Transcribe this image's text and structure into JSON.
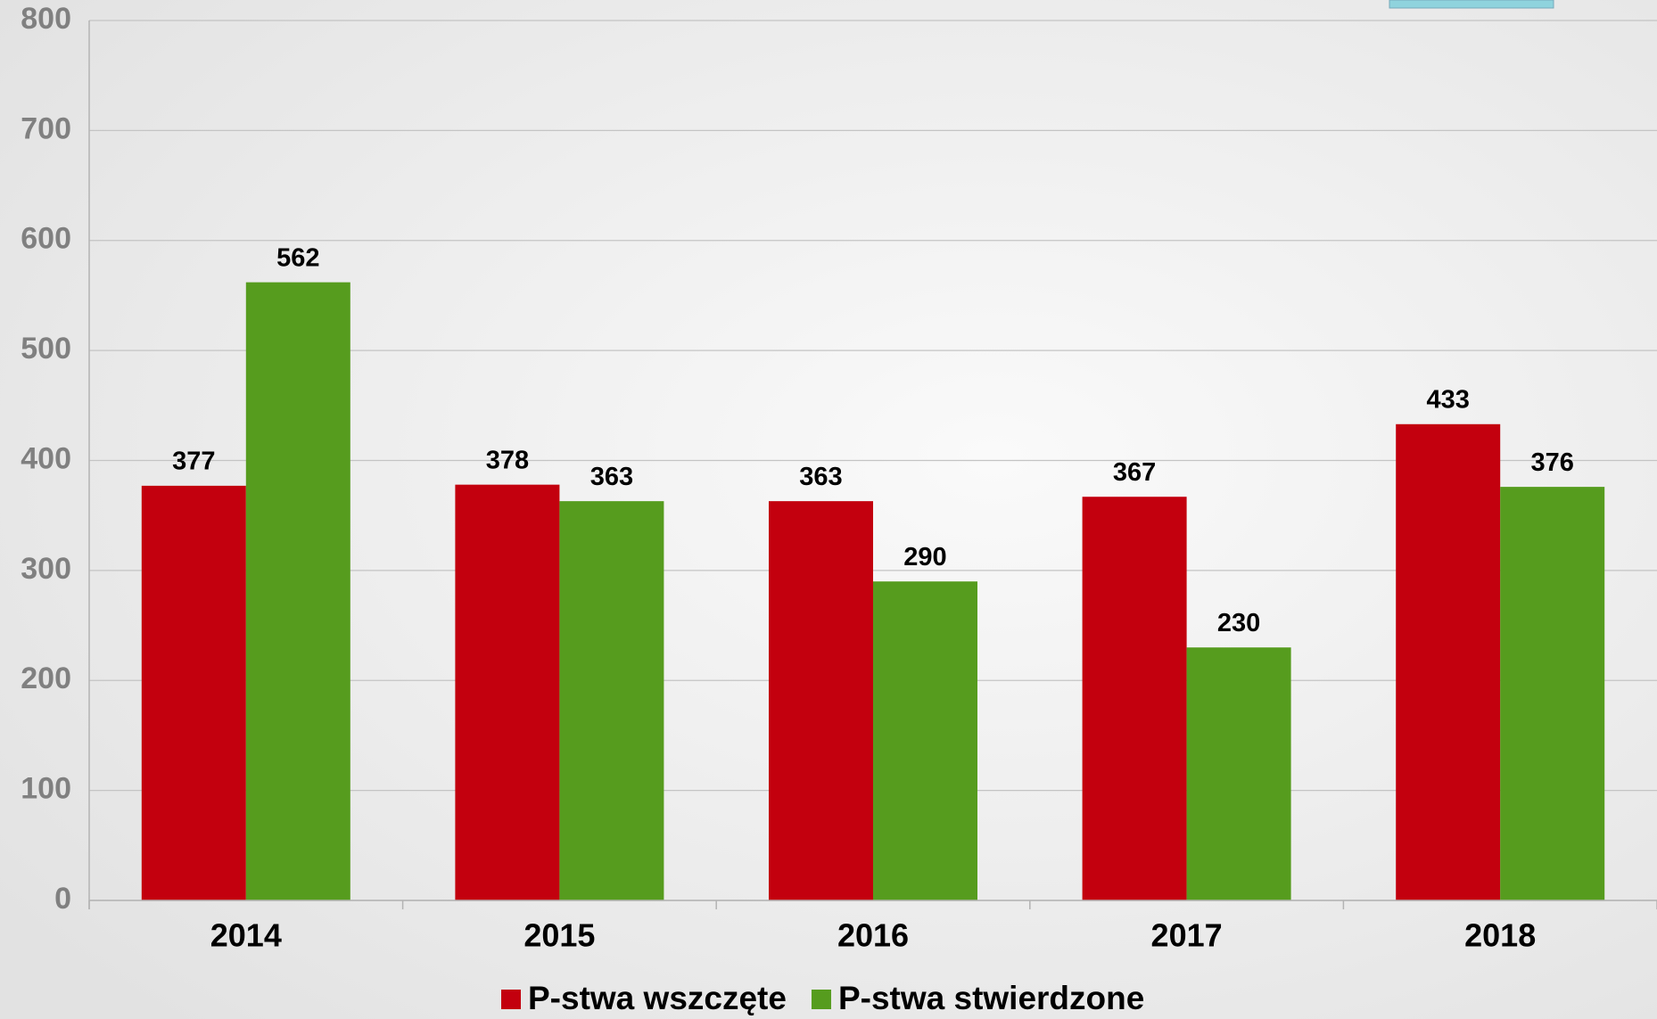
{
  "chart_data": {
    "type": "bar",
    "categories": [
      "2014",
      "2015",
      "2016",
      "2017",
      "2018"
    ],
    "series": [
      {
        "name": "P-stwa wszczęte",
        "color": "#c3000e",
        "values": [
          377,
          378,
          363,
          367,
          433
        ]
      },
      {
        "name": "P-stwa stwierdzone",
        "color": "#569c1e",
        "values": [
          562,
          363,
          290,
          230,
          376
        ]
      }
    ],
    "ylim": [
      0,
      800
    ],
    "yticks": [
      0,
      100,
      200,
      300,
      400,
      500,
      600,
      700,
      800
    ],
    "grid": true,
    "legend": "bottom"
  }
}
